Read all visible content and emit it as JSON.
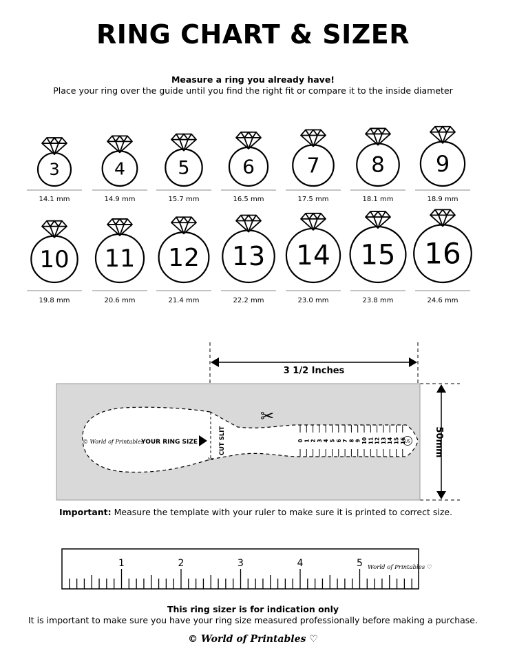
{
  "header": {
    "title": "RING CHART & SIZER",
    "subtitle": "Measure a ring you already have!",
    "instructions": "Place your ring over the guide until you find the right fit or compare it to the inside diameter"
  },
  "rings": [
    {
      "size": "3",
      "mm": 14.1,
      "label": "14.1 mm"
    },
    {
      "size": "4",
      "mm": 14.9,
      "label": "14.9 mm"
    },
    {
      "size": "5",
      "mm": 15.7,
      "label": "15.7 mm"
    },
    {
      "size": "6",
      "mm": 16.5,
      "label": "16.5 mm"
    },
    {
      "size": "7",
      "mm": 17.5,
      "label": "17.5 mm"
    },
    {
      "size": "8",
      "mm": 18.1,
      "label": "18.1 mm"
    },
    {
      "size": "9",
      "mm": 18.9,
      "label": "18.9 mm"
    },
    {
      "size": "10",
      "mm": 19.8,
      "label": "19.8 mm"
    },
    {
      "size": "11",
      "mm": 20.6,
      "label": "20.6 mm"
    },
    {
      "size": "12",
      "mm": 21.4,
      "label": "21.4 mm"
    },
    {
      "size": "13",
      "mm": 22.2,
      "label": "22.2 mm"
    },
    {
      "size": "14",
      "mm": 23.0,
      "label": "23.0 mm"
    },
    {
      "size": "15",
      "mm": 23.8,
      "label": "23.8 mm"
    },
    {
      "size": "16",
      "mm": 24.6,
      "label": "24.6 mm"
    }
  ],
  "sizer": {
    "width_label": "3 1/2 Inches",
    "height_label": "50mm",
    "brand": "© World of Printables ♡",
    "your_ring_size": "YOUR RING SIZE",
    "cut_slit": "CUT SLIT",
    "scale": [
      "0",
      "1",
      "2",
      "3",
      "4",
      "5",
      "6",
      "7",
      "8",
      "9",
      "10",
      "11",
      "12",
      "13",
      "14",
      "15",
      "16"
    ],
    "unit_badge": "US",
    "background_color": "#d9d9d9"
  },
  "important": {
    "label": "Important:",
    "text": " Measure the template with your ruler to make sure it is printed to correct size."
  },
  "ruler": {
    "numbers": [
      "1",
      "2",
      "3",
      "4",
      "5"
    ],
    "brand": "World of Printables ♡"
  },
  "footer": {
    "disclaimer_title": "This ring sizer is for indication only",
    "disclaimer_text": "It is important to make sure you have your ring size measured professionally before making a purchase.",
    "logo": "© World of Printables ♡"
  }
}
